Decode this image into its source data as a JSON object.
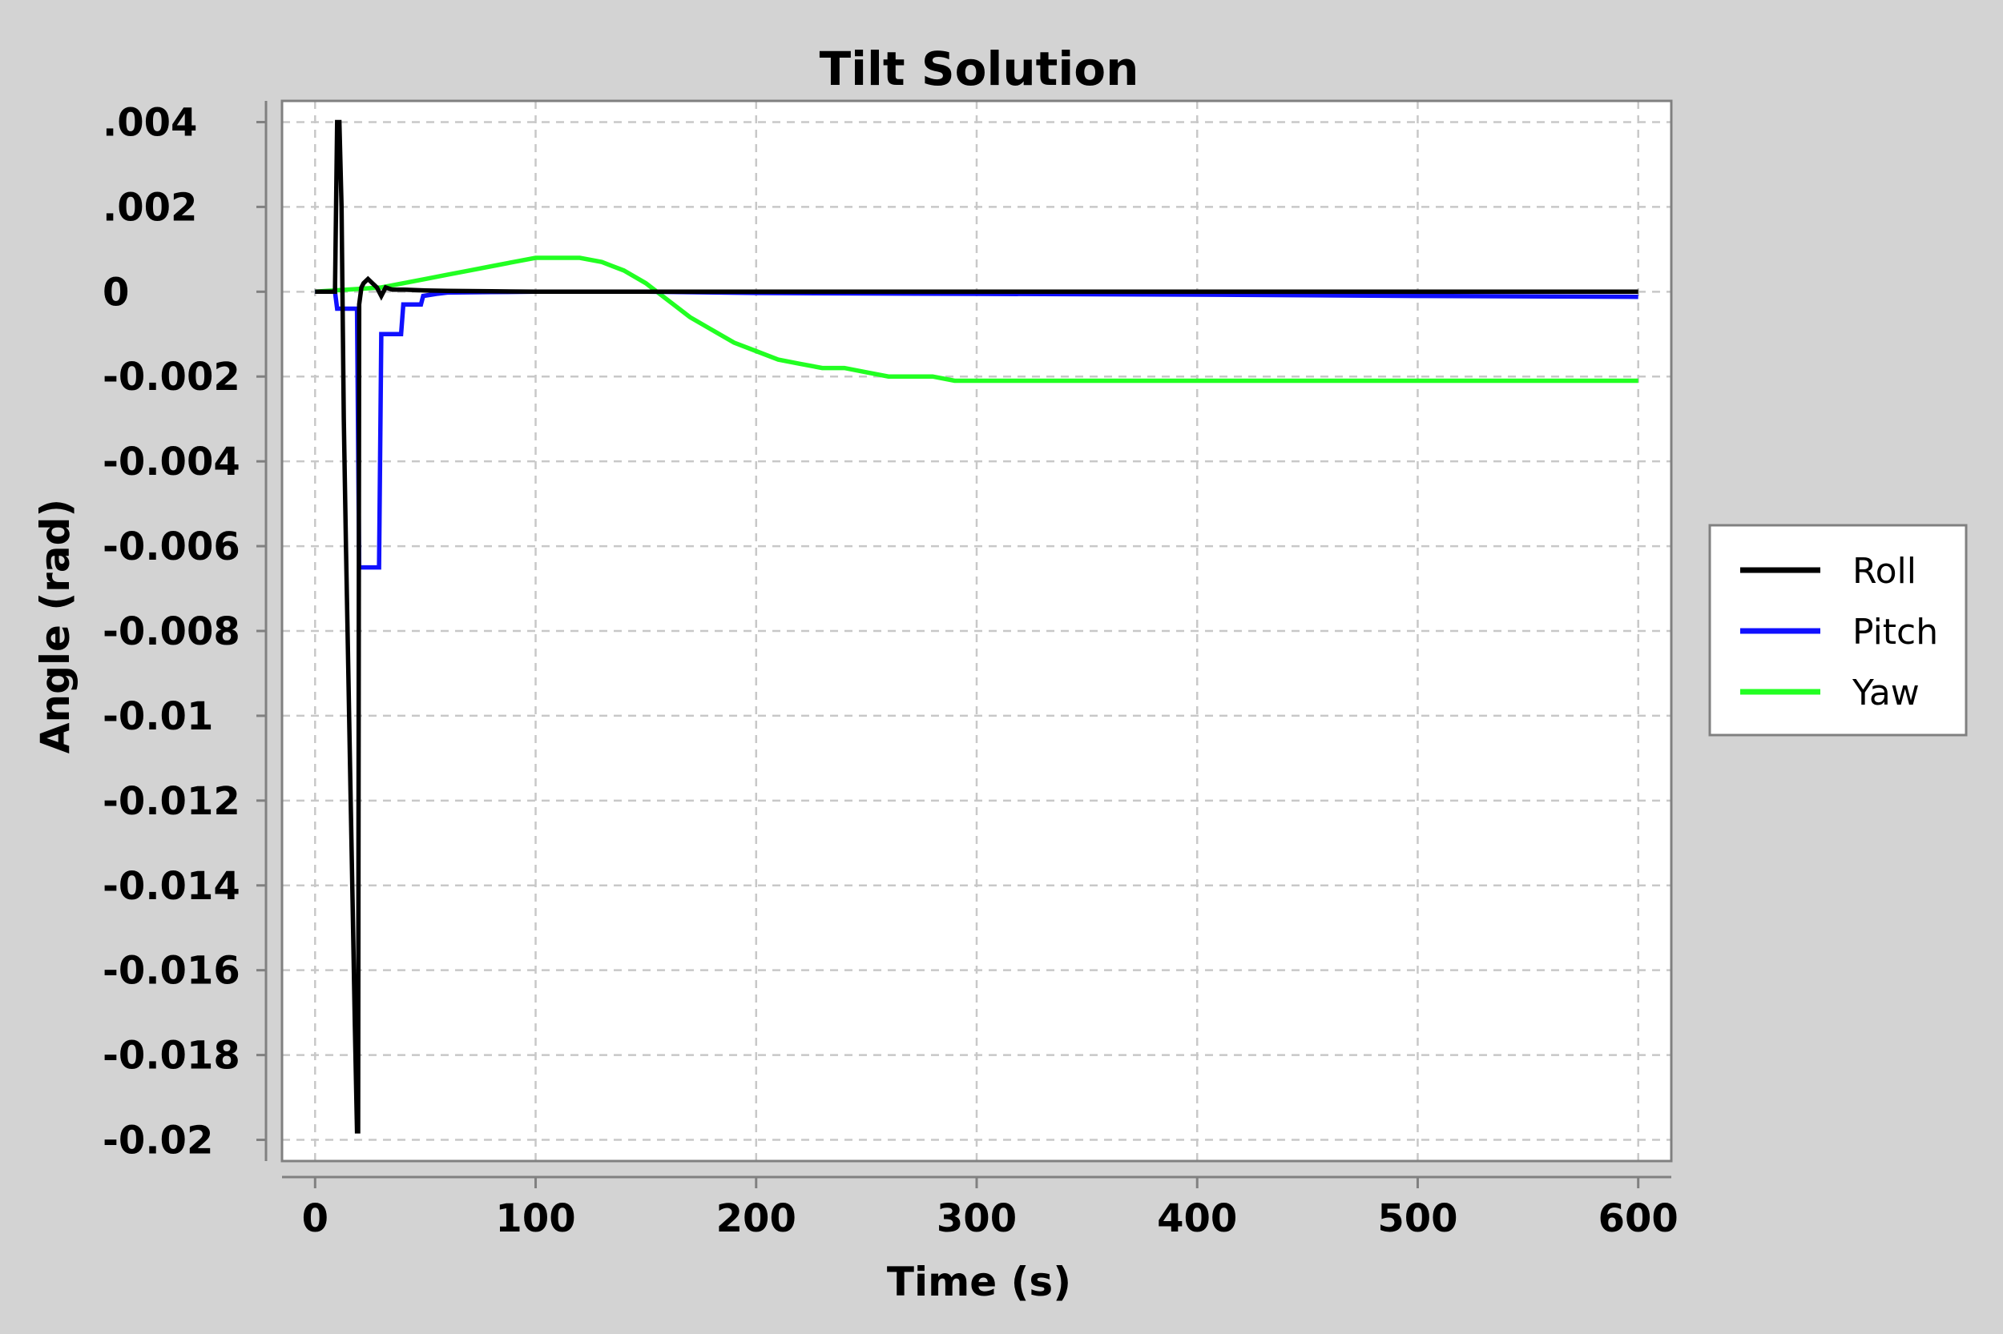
{
  "chart_data": {
    "type": "line",
    "title": "Tilt Solution",
    "xlabel": "Time (s)",
    "ylabel": "Angle (rad)",
    "xlim": [
      -15,
      615
    ],
    "ylim": [
      -0.0205,
      0.0045
    ],
    "x_ticks": [
      0,
      100,
      200,
      300,
      400,
      500,
      600
    ],
    "x_tick_labels": [
      "0",
      "100",
      "200",
      "300",
      "400",
      "500",
      "600"
    ],
    "y_ticks": [
      0.004,
      0.002,
      0,
      -0.002,
      -0.004,
      -0.006,
      -0.008,
      -0.01,
      -0.012,
      -0.014,
      -0.016,
      -0.018,
      -0.02
    ],
    "y_tick_labels": [
      ".004",
      ".002",
      "0",
      "-0.002",
      "-0.004",
      "-0.006",
      "-0.008",
      "-0.01",
      "-0.012",
      "-0.014",
      "-0.016",
      "-0.018",
      "-0.02"
    ],
    "grid": true,
    "legend_position": "right",
    "series": [
      {
        "name": "Roll",
        "color": "#000000",
        "x": [
          0,
          9,
          10,
          11,
          12,
          13,
          14,
          15,
          16,
          17,
          18,
          19,
          19.5,
          20,
          21,
          22,
          24,
          26,
          28,
          30,
          32,
          35,
          40,
          50,
          60,
          80,
          100,
          150,
          200,
          300,
          400,
          500,
          600
        ],
        "y": [
          0,
          0,
          0.004,
          0.004,
          0.002,
          -0.003,
          -0.006,
          -0.0088,
          -0.0116,
          -0.0144,
          -0.0172,
          -0.0198,
          -0.0198,
          -0.0003,
          0.0001,
          0.0002,
          0.0003,
          0.0002,
          0.0001,
          -0.0001,
          0.0001,
          5e-05,
          5e-05,
          3e-05,
          2e-05,
          1e-05,
          0.0,
          0.0,
          0.0,
          0.0,
          0.0,
          0.0,
          0.0
        ]
      },
      {
        "name": "Pitch",
        "color": "#1010ff",
        "x": [
          0,
          9,
          10,
          13,
          16,
          19,
          20,
          28,
          29,
          30,
          38,
          39,
          40,
          48,
          49,
          55,
          60,
          80,
          100,
          150,
          200,
          300,
          400,
          500,
          600
        ],
        "y": [
          0,
          0,
          -0.0004,
          -0.0004,
          -0.0004,
          -0.0004,
          -0.0065,
          -0.0065,
          -0.0065,
          -0.001,
          -0.001,
          -0.001,
          -0.0003,
          -0.0003,
          -0.0001,
          -5e-05,
          -2e-05,
          -1e-05,
          0.0,
          0.0,
          -3e-05,
          -5e-05,
          -7e-05,
          -0.0001,
          -0.00012
        ]
      },
      {
        "name": "Yaw",
        "color": "#22ff22",
        "x": [
          0,
          30,
          40,
          50,
          60,
          70,
          80,
          90,
          100,
          110,
          120,
          130,
          140,
          150,
          160,
          170,
          180,
          190,
          200,
          210,
          220,
          230,
          240,
          250,
          260,
          270,
          280,
          290,
          300,
          320,
          340,
          360,
          380,
          400,
          450,
          500,
          550,
          600
        ],
        "y": [
          0,
          0.0001,
          0.0002,
          0.0003,
          0.0004,
          0.0005,
          0.0006,
          0.0007,
          0.0008,
          0.0008,
          0.0008,
          0.0007,
          0.0005,
          0.0002,
          -0.0002,
          -0.0006,
          -0.0009,
          -0.0012,
          -0.0014,
          -0.0016,
          -0.0017,
          -0.0018,
          -0.0018,
          -0.0019,
          -0.002,
          -0.002,
          -0.002,
          -0.0021,
          -0.0021,
          -0.0021,
          -0.0021,
          -0.0021,
          -0.0021,
          -0.0021,
          -0.0021,
          -0.0021,
          -0.0021,
          -0.0021
        ]
      }
    ]
  }
}
